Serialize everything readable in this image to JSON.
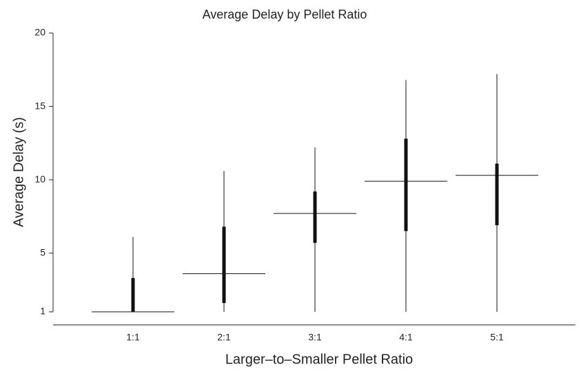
{
  "chart_data": {
    "type": "box",
    "title": "Average Delay by Pellet Ratio",
    "x_label": "Larger–to–Smaller Pellet Ratio",
    "y_label": "Average Delay (s)",
    "categories": [
      "1:1",
      "2:1",
      "3:1",
      "4:1",
      "5:1"
    ],
    "whisker_low": [
      1,
      1,
      1,
      1,
      1
    ],
    "q1": [
      1,
      1.6,
      5.7,
      6.5,
      6.9
    ],
    "median": [
      1,
      3.6,
      7.7,
      9.9,
      10.3
    ],
    "q3": [
      3.3,
      6.8,
      9.2,
      12.8,
      11.1
    ],
    "whisker_high": [
      6.1,
      10.6,
      12.2,
      16.8,
      17.2
    ],
    "color": "#111111",
    "ylim": [
      1,
      20
    ],
    "yticks": [
      1,
      5,
      10,
      15,
      20
    ]
  }
}
